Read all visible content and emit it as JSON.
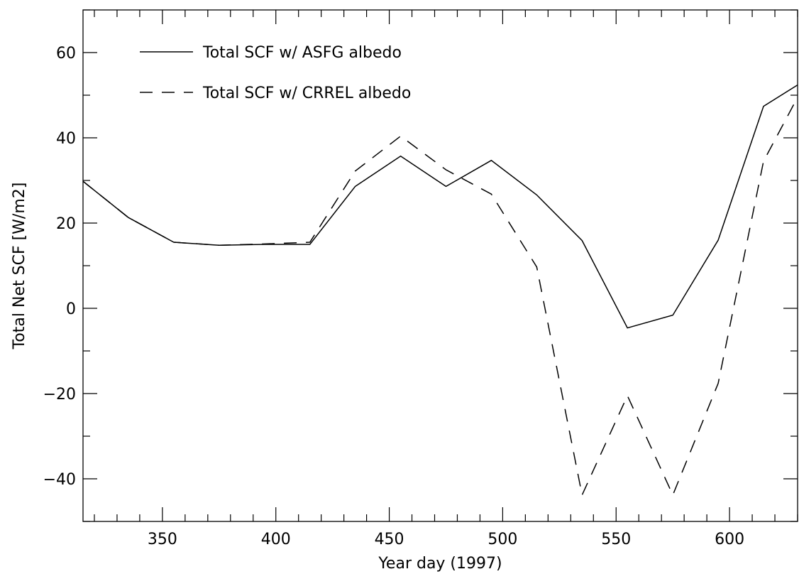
{
  "chart_data": {
    "type": "line",
    "title": "",
    "xlabel": "Year day (1997)",
    "ylabel": "Total Net SCF [W/m2]",
    "xlim": [
      315,
      630
    ],
    "ylim": [
      -50,
      70
    ],
    "x_ticks": [
      350,
      400,
      450,
      500,
      550,
      600
    ],
    "x_tick_labels": [
      "350",
      "400",
      "450",
      "500",
      "550",
      "600"
    ],
    "y_ticks": [
      -40,
      -20,
      0,
      20,
      40,
      60
    ],
    "y_tick_labels": [
      "−40",
      "−20",
      "0",
      "20",
      "40",
      "60"
    ],
    "grid": false,
    "legend_position": "top-left",
    "series": [
      {
        "name": "Total SCF w/ ASFG albedo",
        "line_style": "solid",
        "color": "#000000",
        "x": [
          315,
          335,
          355,
          375,
          395,
          415,
          435,
          455,
          475,
          495,
          515,
          535,
          555,
          575,
          595,
          615,
          630
        ],
        "y": [
          29.8,
          21.3,
          15.5,
          14.8,
          15.0,
          15.0,
          28.6,
          35.7,
          28.6,
          34.7,
          26.6,
          15.9,
          -4.6,
          -1.6,
          16.0,
          47.4,
          52.4
        ]
      },
      {
        "name": "Total SCF w/ CRREL albedo",
        "line_style": "dashed",
        "color": "#000000",
        "x": [
          315,
          335,
          355,
          375,
          395,
          415,
          435,
          455,
          475,
          495,
          515,
          535,
          555,
          575,
          595,
          615,
          630
        ],
        "y": [
          29.8,
          21.3,
          15.5,
          14.8,
          15.1,
          15.5,
          32.2,
          40.4,
          32.5,
          26.8,
          9.7,
          -43.8,
          -20.5,
          -43.8,
          -17.6,
          34.5,
          49.5
        ]
      }
    ]
  }
}
